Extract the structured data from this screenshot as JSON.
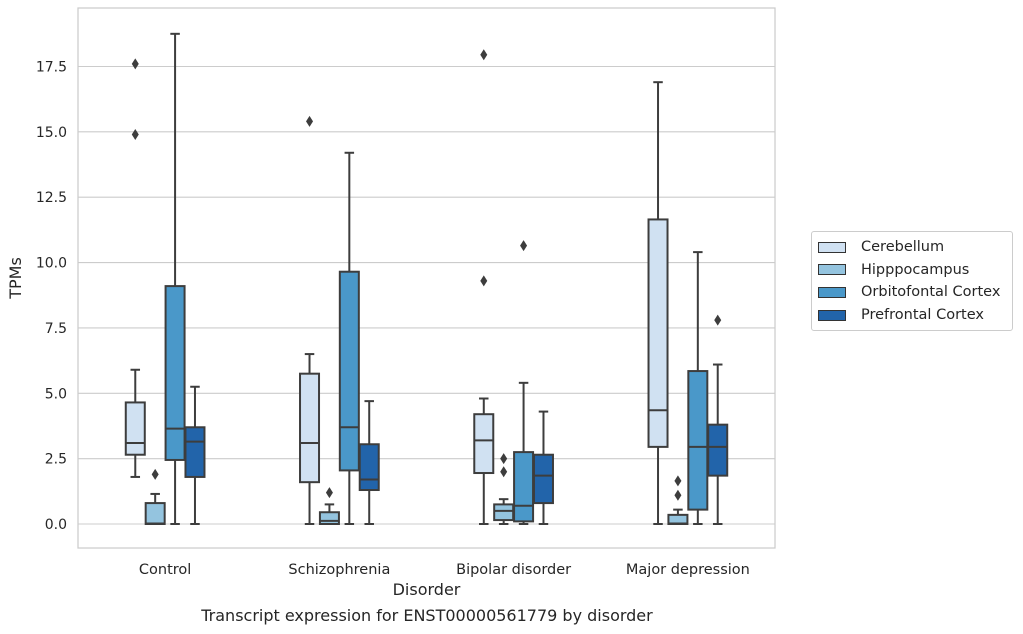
{
  "caption": "Transcript expression for ENST00000561779 by disorder",
  "chart_data": {
    "type": "boxplot",
    "xlabel": "Disorder",
    "ylabel": "TPMs",
    "ylim": [
      -0.9,
      19.7
    ],
    "yticks": [
      0.0,
      2.5,
      5.0,
      7.5,
      10.0,
      12.5,
      15.0,
      17.5
    ],
    "ytick_labels": [
      "0.0",
      "2.5",
      "5.0",
      "7.5",
      "10.0",
      "12.5",
      "15.0",
      "17.5"
    ],
    "grid": "horizontal",
    "legend_position": "outside-right",
    "categories": [
      "Control",
      "Schizophrenia",
      "Bipolar disorder",
      "Major depression"
    ],
    "series": [
      {
        "name": "Cerebellum",
        "color": "#d0e1f2",
        "boxes": [
          {
            "whislo": 1.8,
            "q1": 2.65,
            "med": 3.1,
            "q3": 4.65,
            "whishi": 5.9,
            "fliers": [
              14.9,
              17.6
            ]
          },
          {
            "whislo": 0.0,
            "q1": 1.6,
            "med": 3.1,
            "q3": 5.75,
            "whishi": 6.5,
            "fliers": [
              15.4
            ]
          },
          {
            "whislo": 0.0,
            "q1": 1.95,
            "med": 3.2,
            "q3": 4.2,
            "whishi": 4.8,
            "fliers": [
              9.3,
              17.95
            ]
          },
          {
            "whislo": 0.0,
            "q1": 2.95,
            "med": 4.35,
            "q3": 11.65,
            "whishi": 16.9,
            "fliers": []
          }
        ]
      },
      {
        "name": "Hipppocampus",
        "color": "#94c4df",
        "boxes": [
          {
            "whislo": 0.0,
            "q1": 0.0,
            "med": 0.02,
            "q3": 0.8,
            "whishi": 1.15,
            "fliers": [
              1.9
            ]
          },
          {
            "whislo": 0.0,
            "q1": 0.0,
            "med": 0.12,
            "q3": 0.45,
            "whishi": 0.75,
            "fliers": [
              1.2
            ]
          },
          {
            "whislo": 0.0,
            "q1": 0.15,
            "med": 0.5,
            "q3": 0.75,
            "whishi": 0.95,
            "fliers": [
              2.0,
              2.5
            ]
          },
          {
            "whislo": 0.0,
            "q1": 0.0,
            "med": 0.02,
            "q3": 0.35,
            "whishi": 0.55,
            "fliers": [
              1.1,
              1.65
            ]
          }
        ]
      },
      {
        "name": "Orbitofontal Cortex",
        "color": "#4a98c9",
        "boxes": [
          {
            "whislo": 0.0,
            "q1": 2.45,
            "med": 3.65,
            "q3": 9.1,
            "whishi": 18.75,
            "fliers": []
          },
          {
            "whislo": 0.0,
            "q1": 2.05,
            "med": 3.7,
            "q3": 9.65,
            "whishi": 14.2,
            "fliers": []
          },
          {
            "whislo": 0.0,
            "q1": 0.1,
            "med": 0.7,
            "q3": 2.75,
            "whishi": 5.4,
            "fliers": [
              10.65
            ]
          },
          {
            "whislo": 0.0,
            "q1": 0.55,
            "med": 2.95,
            "q3": 5.85,
            "whishi": 10.4,
            "fliers": []
          }
        ]
      },
      {
        "name": "Prefrontal Cortex",
        "color": "#2264aa",
        "boxes": [
          {
            "whislo": 0.0,
            "q1": 1.8,
            "med": 3.15,
            "q3": 3.7,
            "whishi": 5.25,
            "fliers": []
          },
          {
            "whislo": 0.0,
            "q1": 1.3,
            "med": 1.7,
            "q3": 3.05,
            "whishi": 4.7,
            "fliers": []
          },
          {
            "whislo": 0.0,
            "q1": 0.8,
            "med": 1.85,
            "q3": 2.65,
            "whishi": 4.3,
            "fliers": []
          },
          {
            "whislo": 0.0,
            "q1": 1.85,
            "med": 2.95,
            "q3": 3.8,
            "whishi": 6.1,
            "fliers": [
              7.8
            ]
          }
        ]
      }
    ]
  }
}
